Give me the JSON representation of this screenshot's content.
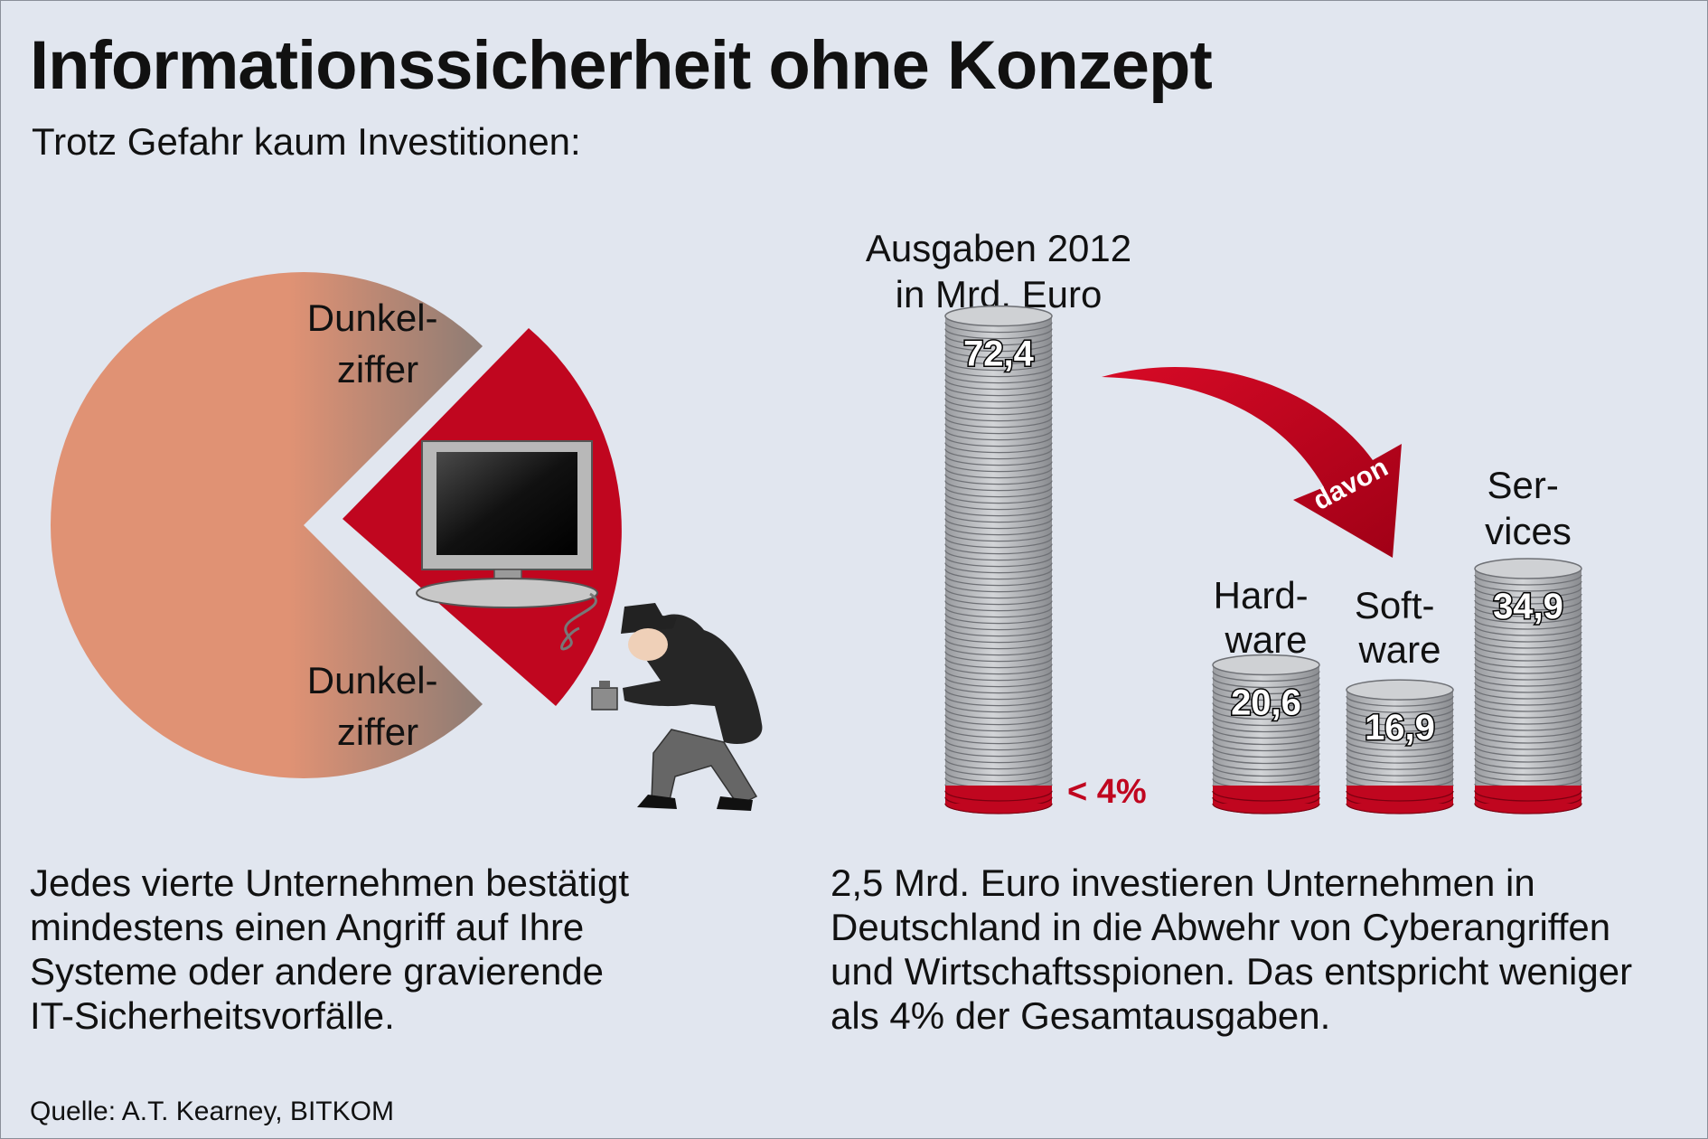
{
  "header": {
    "title": "Informationssicherheit ohne Konzept",
    "subtitle": "Trotz Gefahr kaum Investitionen:"
  },
  "pie": {
    "label_top": [
      "Dunkel-",
      "ziffer"
    ],
    "label_bottom": [
      "Dunkel-",
      "ziffer"
    ]
  },
  "chart_data": {
    "type": "bar",
    "title": "Ausgaben 2012",
    "unit": "in Mrd. Euro",
    "total": {
      "label": "",
      "value": 72.4,
      "display": "72,4",
      "security_share_label": "< 4%"
    },
    "arrow_label": "davon",
    "categories": [
      [
        "Hard-",
        "ware"
      ],
      [
        "Soft-",
        "ware"
      ],
      [
        "Ser-",
        "vices"
      ]
    ],
    "values": [
      20.6,
      16.9,
      34.9
    ],
    "value_labels": [
      "20,6",
      "16,9",
      "34,9"
    ],
    "colors": {
      "coin": "#b9bbbf",
      "coin_edge": "#6e7075",
      "red": "#c0061f"
    }
  },
  "texts": {
    "left": "Jedes vierte Unternehmen bestätigt\nmindestens einen Angriff auf Ihre\nSysteme oder andere gravierende\nIT-Sicherheitsvorfälle.",
    "right": "2,5 Mrd. Euro investieren Unternehmen in\nDeutschland in die Abwehr von Cyberangriffen\nund Wirtschaftsspionen. Das entspricht weniger\nals 4% der Gesamtausgaben."
  },
  "source": "Quelle: A.T. Kearney, BITKOM",
  "colors": {
    "background": "#e1e6ef",
    "pie_salmon": "#e09274",
    "pie_gray": "#8e7c74",
    "accent_red": "#c0061f"
  }
}
